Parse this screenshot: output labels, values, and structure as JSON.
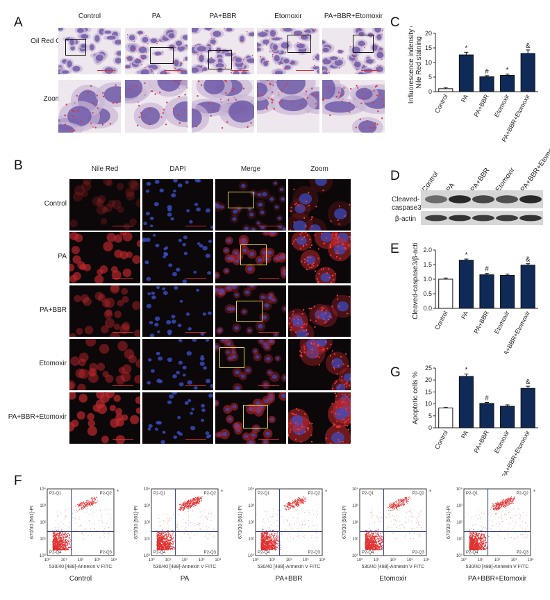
{
  "panels": {
    "A": {
      "letter": "A",
      "columns": [
        "Control",
        "PA",
        "PA+BBR",
        "Etomoxir",
        "PA+BBR+Etomoxir"
      ],
      "rows": [
        "Oil Red O",
        "Zoom"
      ]
    },
    "B": {
      "letter": "B",
      "columns": [
        "Nile Red",
        "DAPI",
        "Merge",
        "Zoom"
      ],
      "rows": [
        "Control",
        "PA",
        "PA+BBR",
        "Etomoxir",
        "PA+BBR+Etomoxir"
      ]
    },
    "C": {
      "letter": "C"
    },
    "D": {
      "letter": "D",
      "lanes": [
        "Control",
        "PA",
        "PA+BBR",
        "Etomoxir",
        "PA+BBR+Etomoxir"
      ],
      "blots": [
        "Cleaved-caspase3",
        "β-actin"
      ],
      "blot_label_lines": [
        "Cleaved-",
        "caspase3"
      ]
    },
    "E": {
      "letter": "E"
    },
    "G": {
      "letter": "G"
    },
    "F": {
      "letter": "F",
      "plots": [
        "Control",
        "PA",
        "PA+BBR",
        "Etomoxir",
        "PA+BBR+Etomoxir"
      ],
      "xlabel": "530/40 [488]-Annexin V FITC",
      "ylabel": "670/30 [561]-PI",
      "quadrants": [
        "P2-Q1",
        "P2-Q2",
        "P2-Q3",
        "P2-Q4"
      ],
      "ticks": [
        "10⁰",
        "10¹",
        "10²",
        "10³",
        "10⁴"
      ]
    }
  },
  "colors": {
    "control_bar": "#ffffff",
    "treated_bar": "#0f2a57",
    "scatter": "#e03030",
    "gate": "#2a3a8a"
  },
  "chart_data": [
    {
      "type": "bar",
      "panel": "C",
      "categories": [
        "Control",
        "PA",
        "PA+BBR",
        "Etomoxir",
        "PA+BBR+Etomoxir"
      ],
      "values": [
        1.0,
        12.6,
        5.1,
        5.6,
        13.1
      ],
      "errors": [
        0.4,
        0.9,
        0.4,
        0.4,
        1.2
      ],
      "annotations": [
        "",
        "*",
        "#",
        "*",
        "&"
      ],
      "ylabel_lines": [
        "Influorescence indensity of",
        "Nile Red staining"
      ],
      "ylim": [
        0,
        20
      ],
      "yticks": [
        "0",
        "5",
        "10",
        "15",
        "20"
      ]
    },
    {
      "type": "bar",
      "panel": "E",
      "categories": [
        "Control",
        "PA",
        "PA+BBR",
        "Etomoxir",
        "PA+BBR+Etomoxir"
      ],
      "values": [
        1.0,
        1.65,
        1.15,
        1.13,
        1.48
      ],
      "errors": [
        0.04,
        0.04,
        0.05,
        0.04,
        0.05
      ],
      "annotations": [
        "",
        "*",
        "#",
        "",
        "&"
      ],
      "ylabel_lines": [
        "Cleaved-caspase3/β-actin"
      ],
      "ylim": [
        0,
        2.0
      ],
      "yticks": [
        "0.0",
        "0.5",
        "1.0",
        "1.5",
        "2.0"
      ]
    },
    {
      "type": "bar",
      "panel": "G",
      "categories": [
        "Control",
        "PA",
        "PA+BBR",
        "Etomoxir",
        "PA+BBR+Etomoxir"
      ],
      "values": [
        8.3,
        21.5,
        10.2,
        9.0,
        16.5
      ],
      "errors": [
        0.2,
        1.0,
        0.4,
        0.6,
        0.9
      ],
      "annotations": [
        "",
        "*",
        "#",
        "",
        "&"
      ],
      "ylabel_lines": [
        "Apoptotic cells %"
      ],
      "ylim": [
        0,
        25
      ],
      "yticks": [
        "0",
        "5",
        "10",
        "15",
        "20",
        "25"
      ]
    }
  ]
}
